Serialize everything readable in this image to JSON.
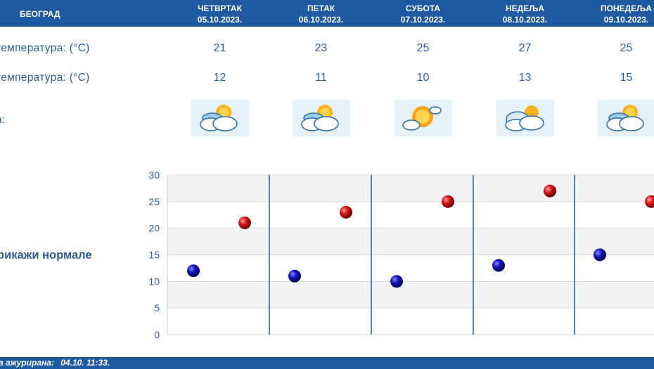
{
  "header": {
    "city": "БЕОГРАД",
    "days": [
      {
        "name": "ЧЕТВРТАК",
        "date": "05.10.2023."
      },
      {
        "name": "ПЕТАК",
        "date": "06.10.2023."
      },
      {
        "name": "СУБОТА",
        "date": "07.10.2023."
      },
      {
        "name": "НЕДЕЉА",
        "date": "08.10.2023."
      },
      {
        "name": "ПОНЕДЕЉА",
        "date": "09.10.2023."
      }
    ]
  },
  "rows": {
    "max_label": "температура: (°C)",
    "min_label": "температура: (°C)",
    "icon_label": "а:"
  },
  "forecast": {
    "max": [
      "21",
      "23",
      "25",
      "27",
      "25"
    ],
    "min": [
      "12",
      "11",
      "10",
      "13",
      "15"
    ],
    "icons": [
      "partly-cloudy-icon",
      "partly-cloudy-icon",
      "mostly-sunny-icon",
      "cloudy-sun-icon",
      "partly-cloudy-icon"
    ]
  },
  "normals_link": "рикажи нормале",
  "footer": {
    "label": "а ажурирана:",
    "value": "04.10. 11:33."
  },
  "chart_data": {
    "type": "scatter",
    "categories": [
      "05.10.2023.",
      "06.10.2023.",
      "07.10.2023.",
      "08.10.2023.",
      "09.10.2023."
    ],
    "series": [
      {
        "values": [
          12,
          11,
          10,
          13,
          15
        ],
        "color": "#1010a0"
      },
      {
        "values": [
          21,
          23,
          25,
          27,
          25
        ],
        "color": "#c81010"
      }
    ],
    "yticks": [
      0,
      5,
      10,
      15,
      20,
      25,
      30
    ],
    "ylim": [
      0,
      30
    ],
    "grid": true
  },
  "colors": {
    "header_bg": "#1f5aa0",
    "text": "#2d5e9a",
    "min_marker": "#1010a0",
    "max_marker": "#c81010"
  }
}
